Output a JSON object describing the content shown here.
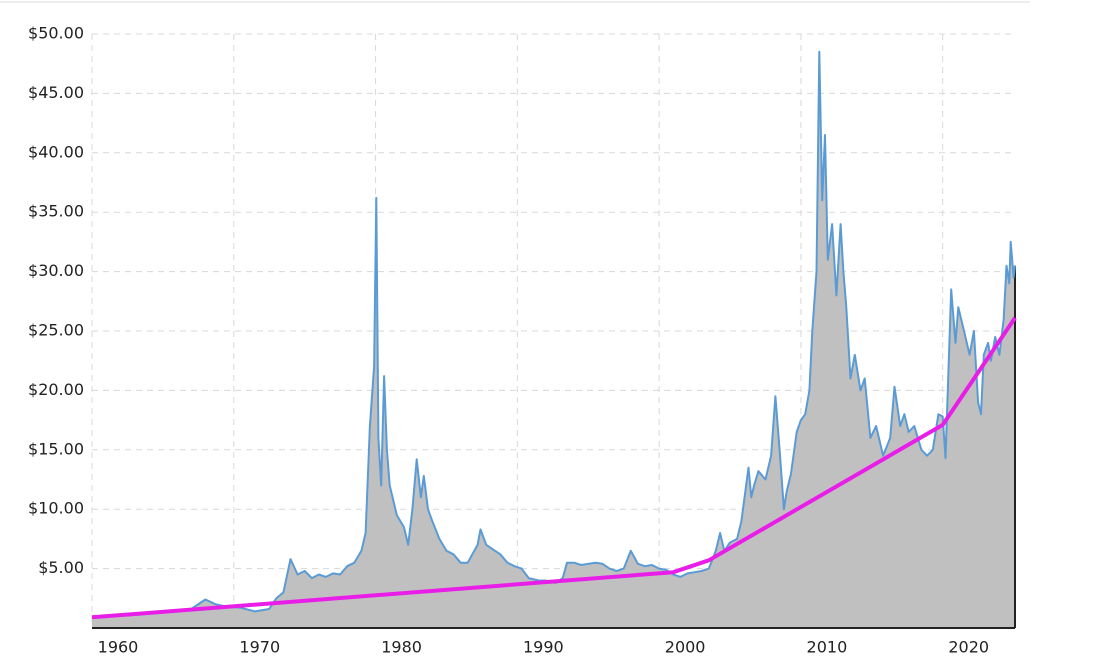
{
  "chart_data": {
    "type": "area",
    "xlim": [
      1960,
      2025.1
    ],
    "xticks": [
      1960,
      1970,
      1980,
      1990,
      2000,
      2010,
      2020
    ],
    "ylim": [
      0,
      50
    ],
    "yticks": [
      {
        "value": 5,
        "label": "$5.00"
      },
      {
        "value": 10,
        "label": "$10.00"
      },
      {
        "value": 15,
        "label": "$15.00"
      },
      {
        "value": 20,
        "label": "$20.00"
      },
      {
        "value": 25,
        "label": "$25.00"
      },
      {
        "value": 30,
        "label": "$30.00"
      },
      {
        "value": 35,
        "label": "$35.00"
      },
      {
        "value": 40,
        "label": "$40.00"
      },
      {
        "value": 45,
        "label": "$45.00"
      },
      {
        "value": 50,
        "label": "$50.00"
      }
    ],
    "grid": true,
    "series": [
      {
        "color": "#5b9bd5",
        "fill": "#c0c0c0",
        "x": [
          1960,
          1963,
          1965,
          1967,
          1968,
          1968.7,
          1969.5,
          1970.5,
          1971.5,
          1972.5,
          1973,
          1973.5,
          1974,
          1974.5,
          1975,
          1975.5,
          1976,
          1976.5,
          1977,
          1977.5,
          1978,
          1978.5,
          1979,
          1979.3,
          1979.6,
          1979.9,
          1980.05,
          1980.2,
          1980.4,
          1980.6,
          1980.8,
          1981,
          1981.5,
          1982,
          1982.3,
          1982.6,
          1982.9,
          1983.2,
          1983.4,
          1983.7,
          1984,
          1984.5,
          1985,
          1985.5,
          1986,
          1986.5,
          1987.2,
          1987.4,
          1987.8,
          1988.3,
          1988.8,
          1989.3,
          1989.8,
          1990.3,
          1990.8,
          1991.5,
          1992,
          1992.7,
          1993.2,
          1993.5,
          1994,
          1994.5,
          1995,
          1995.5,
          1996,
          1996.5,
          1997,
          1997.5,
          1998,
          1998.5,
          1999,
          1999.5,
          2000,
          2000.5,
          2001,
          2001.5,
          2002,
          2002.5,
          2003,
          2003.5,
          2004,
          2004.3,
          2004.6,
          2005,
          2005.5,
          2005.8,
          2006.3,
          2006.5,
          2006.7,
          2007,
          2007.5,
          2007.9,
          2008.2,
          2008.5,
          2008.8,
          2009,
          2009.3,
          2009.7,
          2010,
          2010.3,
          2010.6,
          2010.8,
          2011.1,
          2011.3,
          2011.5,
          2011.7,
          2011.9,
          2012.2,
          2012.5,
          2012.8,
          2013,
          2013.2,
          2013.5,
          2013.8,
          2014.2,
          2014.5,
          2014.9,
          2015.3,
          2015.8,
          2016.3,
          2016.6,
          2017,
          2017.3,
          2017.6,
          2018,
          2018.5,
          2018.9,
          2019.3,
          2019.7,
          2020,
          2020.2,
          2020.6,
          2020.9,
          2021.1,
          2021.5,
          2021.9,
          2022.2,
          2022.5,
          2022.7,
          2022.9,
          2023.2,
          2023.4,
          2023.7,
          2024,
          2024.3,
          2024.5,
          2024.7,
          2024.8,
          2025,
          2025.1
        ],
        "values": [
          0.9,
          1.1,
          1.3,
          1.6,
          2.4,
          2.0,
          1.8,
          1.7,
          1.4,
          1.6,
          2.5,
          3.0,
          5.8,
          4.5,
          4.8,
          4.2,
          4.5,
          4.3,
          4.6,
          4.5,
          5.2,
          5.5,
          6.5,
          8,
          17,
          22,
          36.2,
          16,
          12,
          21.2,
          15,
          12,
          9.5,
          8.5,
          7,
          10,
          14.2,
          11,
          12.8,
          10,
          9,
          7.5,
          6.5,
          6.2,
          5.5,
          5.5,
          7,
          8.3,
          7,
          6.6,
          6.2,
          5.5,
          5.2,
          5.0,
          4.2,
          4.0,
          4.0,
          3.8,
          4.2,
          5.5,
          5.5,
          5.3,
          5.4,
          5.5,
          5.4,
          5.0,
          4.8,
          5.0,
          6.5,
          5.4,
          5.2,
          5.3,
          5.0,
          4.9,
          4.5,
          4.3,
          4.6,
          4.7,
          4.8,
          5.0,
          6.5,
          8.0,
          6.5,
          7.2,
          7.5,
          9,
          13.5,
          11,
          12,
          13.2,
          12.5,
          14.5,
          19.5,
          15,
          10,
          11.5,
          13,
          16.5,
          17.5,
          18,
          20,
          25,
          30,
          48.5,
          36,
          41.5,
          31,
          34,
          28,
          34,
          30,
          27,
          21,
          23,
          20,
          21,
          16,
          17,
          14.5,
          16,
          20.3,
          17,
          18,
          16.5,
          17,
          15,
          14.5,
          15,
          18,
          17.8,
          14.3,
          28.5,
          24,
          27,
          25,
          23,
          25,
          19,
          18,
          23,
          24,
          22.5,
          24.5,
          23,
          26,
          30.5,
          29,
          32.5,
          29.5,
          30.5
        ]
      },
      {
        "color": "#e81ee8",
        "x": [
          1960,
          2001,
          2003.5,
          2020,
          2025.1
        ],
        "values": [
          0.9,
          4.7,
          5.7,
          17.1,
          26.1
        ]
      }
    ]
  }
}
